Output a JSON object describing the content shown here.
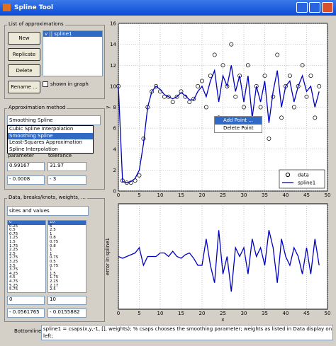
{
  "window": {
    "title": "Spline Tool"
  },
  "approximations": {
    "label": "List of approximations",
    "buttons": [
      "New",
      "Replicate",
      "Delete",
      "Rename ..."
    ],
    "items": [
      "v || spline1"
    ],
    "checkbox": "shown in graph"
  },
  "method": {
    "label": "Approximation method",
    "selected": "Smoothing Spline",
    "options": [
      "Cubic Spline Interpolation",
      "Smoothing Spline",
      "Least-Squares Approximation",
      "Spline Interpolation"
    ],
    "fields": [
      "parameter",
      "tolerance"
    ],
    "parameter": "0.99167",
    "tolerance": "31.97",
    "parameter_step": "0.0008",
    "tolerance_step": "3"
  },
  "data_panel": {
    "label": "Data, breaks/knots, weights, ...",
    "selected": "sites   and   values",
    "sites": [
      "0",
      "0.25",
      "0.5",
      "0.75",
      "1.25",
      "1.5",
      "1.75",
      "2.25",
      "2.5",
      "2.75",
      "3.25",
      "3.5",
      "3.75",
      "4.25",
      "4.5",
      "4.75",
      "5.25",
      "5.75"
    ],
    "values": [
      "10",
      "6",
      "2.5",
      "1",
      "0.8",
      "0.75",
      "0.8",
      "1",
      "1",
      "0.75",
      "0.5",
      "0.75",
      "1",
      "1.5",
      "1.75",
      "2.25",
      "2.17",
      "2.5"
    ],
    "site_edit": "0",
    "value_edit": "10",
    "site_step": "0.0561765",
    "value_step": "0.0155882"
  },
  "context_menu": [
    "Add Point ...",
    "Delete Point"
  ],
  "bottomline": {
    "label": "Bottomline:",
    "text": "spline1 = csaps(x,y,-1, [], weights); %  csaps chooses the smoothing parameter; weights as listed in Data display on left;"
  },
  "chart_data": [
    {
      "type": "line",
      "ylabel": "y",
      "legend": "lower right",
      "grid": true,
      "x": [
        0,
        1,
        2,
        3,
        4,
        5,
        6,
        7,
        8,
        9,
        10,
        11,
        12,
        13,
        14,
        15,
        16,
        17,
        18,
        19,
        20,
        21,
        22,
        23,
        24,
        25,
        26,
        27,
        28,
        29,
        30,
        31,
        32,
        33,
        34,
        35,
        36,
        37,
        38,
        39,
        40,
        41,
        42,
        43,
        44,
        45,
        46,
        47,
        48
      ],
      "xlim": [
        0,
        50
      ],
      "xticks": [
        0,
        5,
        10,
        15,
        20,
        25,
        30,
        35,
        40,
        45,
        50
      ],
      "ylim": [
        0,
        16
      ],
      "yticks": [
        0,
        2,
        4,
        6,
        8,
        10,
        12,
        14,
        16
      ],
      "series": [
        {
          "name": "data",
          "type": "scatter",
          "color": "#000000",
          "values": [
            10,
            1,
            0.8,
            0.8,
            1,
            1.5,
            5,
            8,
            9.5,
            10,
            9.5,
            9,
            9,
            8.5,
            9,
            9.5,
            9,
            8.5,
            8.8,
            10,
            10.5,
            8,
            11,
            13,
            7,
            12,
            10,
            14,
            9,
            11,
            8,
            12,
            6,
            10,
            8,
            11,
            5,
            9,
            13,
            7,
            10,
            11,
            8,
            10,
            12,
            9,
            11,
            7,
            10
          ]
        },
        {
          "name": "spline1",
          "type": "line",
          "color": "#0000c0",
          "values": [
            10,
            0.9,
            0.8,
            0.9,
            1.2,
            2,
            4.5,
            8,
            9.5,
            10,
            9.7,
            9.2,
            9,
            8.8,
            9,
            9.4,
            9.1,
            8.7,
            8.7,
            9.5,
            10,
            9,
            10.5,
            11.5,
            8.5,
            11,
            10,
            12,
            9.5,
            11,
            8.5,
            11,
            7,
            10,
            8.5,
            10.5,
            6.5,
            9.5,
            11.5,
            8,
            10,
            10.5,
            8.5,
            10,
            11,
            9.5,
            10,
            8,
            9.5
          ]
        }
      ]
    },
    {
      "type": "line",
      "xlabel": "x",
      "ylabel": "error in spline1",
      "grid": true,
      "x": [
        0,
        1,
        2,
        3,
        4,
        5,
        6,
        7,
        8,
        9,
        10,
        11,
        12,
        13,
        14,
        15,
        16,
        17,
        18,
        19,
        20,
        21,
        22,
        23,
        24,
        25,
        26,
        27,
        28,
        29,
        30,
        31,
        32,
        33,
        34,
        35,
        36,
        37,
        38,
        39,
        40,
        41,
        42,
        43,
        44,
        45,
        46,
        47,
        48
      ],
      "xlim": [
        0,
        50
      ],
      "xticks": [
        0,
        5,
        10,
        15,
        20,
        25,
        30,
        35,
        40,
        45,
        50
      ],
      "ylim": [
        -3,
        3
      ],
      "series": [
        {
          "type": "line",
          "color": "#0000c0",
          "values": [
            0,
            -0.1,
            0,
            0.1,
            0.2,
            0.5,
            -0.5,
            0,
            0,
            0,
            0.2,
            0.2,
            0,
            0.3,
            0,
            -0.1,
            0.1,
            0.2,
            -0.1,
            -0.5,
            -0.5,
            1,
            -0.5,
            -1.5,
            1.5,
            -1,
            0,
            -2,
            0.5,
            0,
            0.5,
            -1,
            1,
            0,
            0.5,
            -0.5,
            1.5,
            0.5,
            -1.5,
            1,
            0,
            -0.5,
            0.5,
            0,
            -1,
            0.5,
            -1,
            1,
            -0.5
          ]
        }
      ]
    }
  ]
}
